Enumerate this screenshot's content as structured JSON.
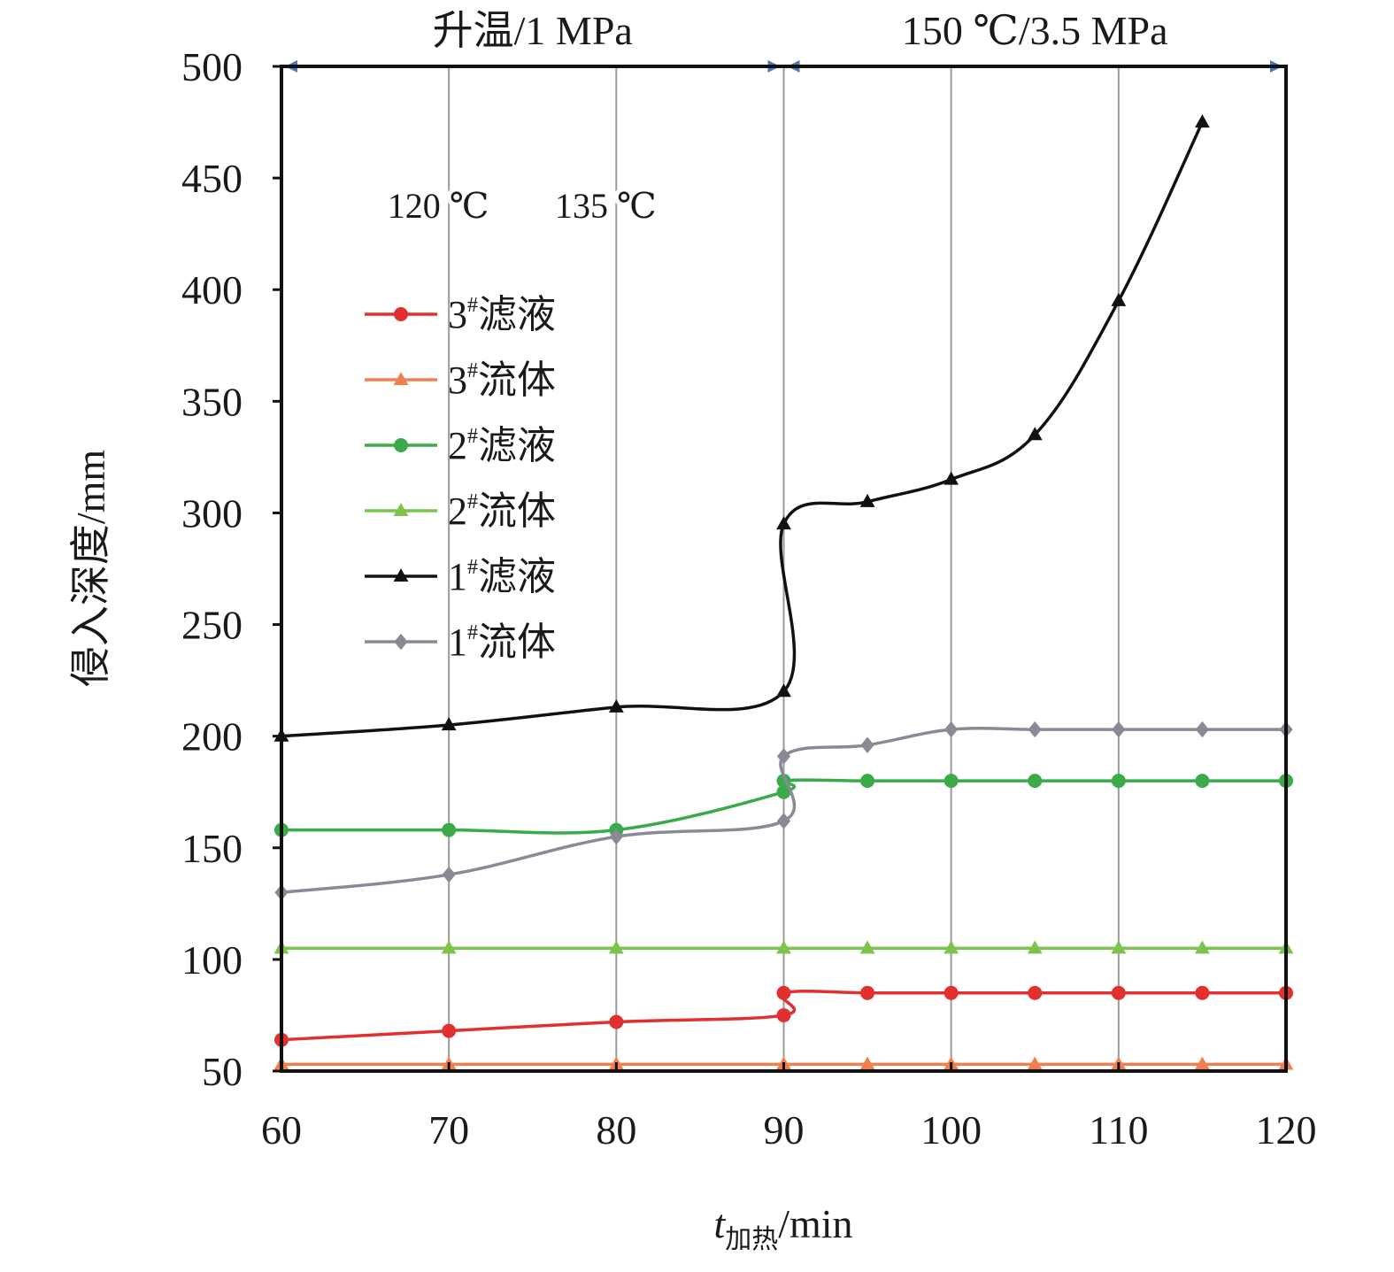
{
  "chart_data": {
    "type": "line",
    "title": "",
    "xlabel": {
      "main": "t",
      "subscript": "加热",
      "unit": "/min"
    },
    "ylabel": "侵入深度/mm",
    "xlim": [
      60,
      120
    ],
    "ylim": [
      50,
      500
    ],
    "xticks": [
      60,
      70,
      80,
      90,
      100,
      110,
      120
    ],
    "yticks": [
      50,
      100,
      150,
      200,
      250,
      300,
      350,
      400,
      450,
      500
    ],
    "grid": {
      "vertical": true,
      "horizontal": false
    },
    "legend_position": "center-left",
    "phases": [
      {
        "label": "升温/1 MPa",
        "from": 60,
        "to": 90
      },
      {
        "label": "150 ℃/3.5 MPa",
        "from": 90,
        "to": 120
      }
    ],
    "temperature_annotations": [
      {
        "label": "120 ℃",
        "x": 70
      },
      {
        "label": "135 ℃",
        "x": 80
      }
    ],
    "phase_arrow_color": "#4a78b8",
    "series": [
      {
        "name": "3#滤液",
        "base": "3",
        "sup": "#",
        "suffix": "滤液",
        "color": "#e03030",
        "marker": "circle",
        "x": [
          60,
          70,
          80,
          90,
          90,
          95,
          100,
          105,
          110,
          115,
          120
        ],
        "y": [
          64,
          68,
          72,
          75,
          85,
          85,
          85,
          85,
          85,
          85,
          85
        ]
      },
      {
        "name": "3#流体",
        "base": "3",
        "sup": "#",
        "suffix": "流体",
        "color": "#f08050",
        "marker": "triangle",
        "x": [
          60,
          70,
          80,
          90,
          95,
          100,
          105,
          110,
          115,
          120
        ],
        "y": [
          53,
          53,
          53,
          53,
          53,
          53,
          53,
          53,
          53,
          53
        ]
      },
      {
        "name": "2#滤液",
        "base": "2",
        "sup": "#",
        "suffix": "滤液",
        "color": "#3aaa4a",
        "marker": "circle",
        "x": [
          60,
          70,
          80,
          90,
          90,
          95,
          100,
          105,
          110,
          115,
          120
        ],
        "y": [
          158,
          158,
          158,
          175,
          180,
          180,
          180,
          180,
          180,
          180,
          180
        ]
      },
      {
        "name": "2#流体",
        "base": "2",
        "sup": "#",
        "suffix": "流体",
        "color": "#7cc44e",
        "marker": "triangle",
        "x": [
          60,
          70,
          80,
          90,
          95,
          100,
          105,
          110,
          115,
          120
        ],
        "y": [
          105,
          105,
          105,
          105,
          105,
          105,
          105,
          105,
          105,
          105
        ]
      },
      {
        "name": "1#滤液",
        "base": "1",
        "sup": "#",
        "suffix": "滤液",
        "color": "#111111",
        "marker": "triangle",
        "x": [
          60,
          70,
          80,
          90,
          90,
          95,
          100,
          105,
          110,
          115
        ],
        "y": [
          200,
          205,
          213,
          220,
          295,
          305,
          315,
          335,
          395,
          475
        ]
      },
      {
        "name": "1#流体",
        "base": "1",
        "sup": "#",
        "suffix": "流体",
        "color": "#8a8a96",
        "marker": "diamond",
        "x": [
          60,
          70,
          80,
          90,
          90,
          95,
          100,
          105,
          110,
          115,
          120
        ],
        "y": [
          130,
          138,
          155,
          162,
          191,
          196,
          203,
          203,
          203,
          203,
          203
        ]
      }
    ]
  }
}
